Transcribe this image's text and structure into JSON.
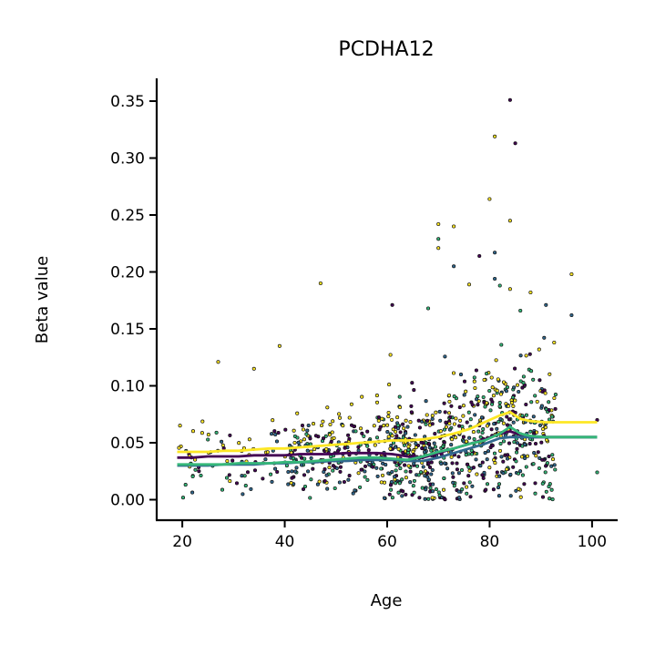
{
  "chart_data": {
    "type": "scatter",
    "title": "PCDHA12",
    "xlabel": "Age",
    "ylabel": "Beta value",
    "xlim": [
      15,
      105
    ],
    "ylim": [
      -0.018,
      0.37
    ],
    "xticks": [
      20,
      40,
      60,
      80,
      100
    ],
    "yticks": [
      0.0,
      0.05,
      0.1,
      0.15,
      0.2,
      0.25,
      0.3,
      0.35
    ],
    "xtick_labels": [
      "20",
      "40",
      "60",
      "80",
      "100"
    ],
    "ytick_labels": [
      "0.00",
      "0.05",
      "0.10",
      "0.15",
      "0.20",
      "0.25",
      "0.30",
      "0.35"
    ],
    "grid": false,
    "colors": [
      "#440154",
      "#31688e",
      "#35b779",
      "#fde725"
    ],
    "point_edge_color": "#111111",
    "outlier_points": [
      {
        "x": 84,
        "y": 0.351,
        "group": 0
      },
      {
        "x": 85,
        "y": 0.313,
        "group": 0
      },
      {
        "x": 81,
        "y": 0.319,
        "group": 3
      },
      {
        "x": 80,
        "y": 0.264,
        "group": 3
      },
      {
        "x": 84,
        "y": 0.245,
        "group": 3
      },
      {
        "x": 70,
        "y": 0.242,
        "group": 3
      },
      {
        "x": 73,
        "y": 0.24,
        "group": 3
      },
      {
        "x": 70,
        "y": 0.229,
        "group": 2
      },
      {
        "x": 70,
        "y": 0.221,
        "group": 3
      },
      {
        "x": 81,
        "y": 0.217,
        "group": 1
      },
      {
        "x": 78,
        "y": 0.214,
        "group": 0
      },
      {
        "x": 73,
        "y": 0.205,
        "group": 1
      },
      {
        "x": 96,
        "y": 0.198,
        "group": 3
      },
      {
        "x": 81,
        "y": 0.194,
        "group": 1
      },
      {
        "x": 47,
        "y": 0.19,
        "group": 3
      },
      {
        "x": 82,
        "y": 0.188,
        "group": 2
      },
      {
        "x": 84,
        "y": 0.185,
        "group": 3
      },
      {
        "x": 88,
        "y": 0.182,
        "group": 3
      },
      {
        "x": 76,
        "y": 0.189,
        "group": 3
      },
      {
        "x": 61,
        "y": 0.171,
        "group": 0
      },
      {
        "x": 68,
        "y": 0.168,
        "group": 2
      },
      {
        "x": 96,
        "y": 0.162,
        "group": 1
      },
      {
        "x": 86,
        "y": 0.166,
        "group": 2
      },
      {
        "x": 91,
        "y": 0.171,
        "group": 1
      },
      {
        "x": 39,
        "y": 0.135,
        "group": 3
      },
      {
        "x": 34,
        "y": 0.115,
        "group": 3
      },
      {
        "x": 27,
        "y": 0.121,
        "group": 3
      },
      {
        "x": 101,
        "y": 0.07,
        "group": 0
      },
      {
        "x": 101,
        "y": 0.024,
        "group": 2
      }
    ],
    "bulk_points_per_group": 240,
    "trend_x": [
      19,
      22,
      25,
      28,
      31,
      34,
      37,
      40,
      43,
      46,
      49,
      52,
      55,
      58,
      61,
      64,
      67,
      70,
      73,
      76,
      79,
      82,
      84,
      86,
      88,
      91,
      94,
      97,
      101
    ],
    "series": [
      {
        "color": "#440154",
        "values": [
          0.037,
          0.037,
          0.038,
          0.038,
          0.038,
          0.039,
          0.039,
          0.039,
          0.04,
          0.04,
          0.04,
          0.041,
          0.041,
          0.041,
          0.04,
          0.038,
          0.037,
          0.041,
          0.045,
          0.049,
          0.053,
          0.058,
          0.06,
          0.057,
          0.055,
          0.055,
          0.055,
          0.055,
          0.055
        ]
      },
      {
        "color": "#31688e",
        "values": [
          0.03,
          0.03,
          0.03,
          0.031,
          0.031,
          0.031,
          0.032,
          0.032,
          0.033,
          0.033,
          0.034,
          0.034,
          0.035,
          0.035,
          0.035,
          0.034,
          0.034,
          0.037,
          0.041,
          0.045,
          0.049,
          0.054,
          0.055,
          0.055,
          0.055,
          0.055,
          0.055,
          0.055,
          0.055
        ]
      },
      {
        "color": "#35b779",
        "values": [
          0.031,
          0.031,
          0.031,
          0.031,
          0.032,
          0.032,
          0.032,
          0.033,
          0.033,
          0.034,
          0.035,
          0.036,
          0.037,
          0.037,
          0.036,
          0.035,
          0.038,
          0.042,
          0.045,
          0.049,
          0.052,
          0.058,
          0.064,
          0.058,
          0.056,
          0.055,
          0.055,
          0.055,
          0.055
        ]
      },
      {
        "color": "#fde725",
        "values": [
          0.042,
          0.042,
          0.042,
          0.043,
          0.043,
          0.044,
          0.045,
          0.045,
          0.046,
          0.047,
          0.048,
          0.049,
          0.05,
          0.051,
          0.052,
          0.052,
          0.053,
          0.055,
          0.058,
          0.062,
          0.068,
          0.074,
          0.077,
          0.071,
          0.069,
          0.068,
          0.068,
          0.068,
          0.068
        ]
      }
    ]
  }
}
